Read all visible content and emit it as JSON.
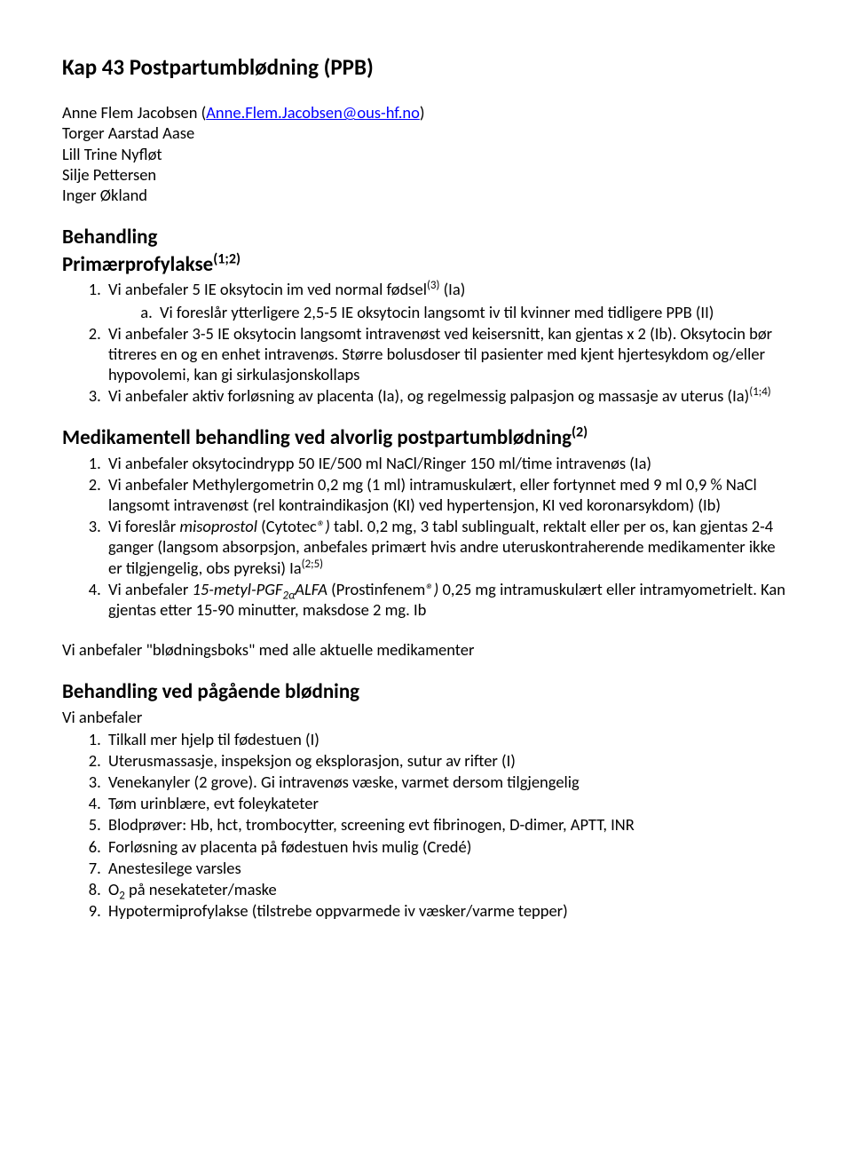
{
  "title": "Kap 43 Postpartumblødning (PPB)",
  "authors": {
    "line1_pre": "Anne Flem Jacobsen (",
    "email": "Anne.Flem.Jacobsen@ous-hf.no",
    "line1_post": ")",
    "line2": "Torger Aarstad Aase",
    "line3": "Lill Trine Nyfløt",
    "line4": "Silje Pettersen",
    "line5": "Inger Økland"
  },
  "s1": {
    "heading": "Behandling",
    "subheading_pre": "Primærprofylakse",
    "subheading_sup": "(1;2)",
    "items": {
      "i1_pre": "Vi anbefaler 5 IE oksytocin im ved normal fødsel",
      "i1_sup": "(3)",
      "i1_post": " (Ia)",
      "i1a": "Vi foreslår ytterligere 2,5-5 IE oksytocin langsomt iv til kvinner med tidligere PPB (II)",
      "i2": "Vi anbefaler 3-5 IE oksytocin langsomt intravenøst ved keisersnitt, kan gjentas x 2 (Ib). Oksytocin bør titreres en og en enhet intravenøs. Større bolusdoser til pasienter med kjent hjertesykdom og/eller hypovolemi, kan gi sirkulasjonskollaps",
      "i3_pre": "Vi anbefaler aktiv forløsning av placenta (Ia), og regelmessig palpasjon og massasje av uterus (Ia)",
      "i3_sup": "(1;4)"
    }
  },
  "s2": {
    "heading_pre": "Medikamentell behandling ved alvorlig postpartumblødning",
    "heading_sup": "(2)",
    "items": {
      "i1": "Vi anbefaler oksytocindrypp 50 IE/500 ml NaCl/Ringer 150 ml/time intravenøs (Ia)",
      "i2": "Vi anbefaler Methylergometrin 0,2 mg (1 ml) intramuskulært, eller fortynnet med 9 ml 0,9 % NaCl langsomt intravenøst (rel kontraindikasjon (KI) ved hypertensjon, KI ved koronarsykdom) (Ib)",
      "i3_pre": "Vi foreslår ",
      "i3_em": "misoprostol",
      "i3_mid": " (Cytotec",
      "i3_em2": "®)",
      "i3_post": " tabl. 0,2 mg, 3 tabl sublingualt, rektalt eller per os, kan gjentas 2-4 ganger (langsom absorpsjon, anbefales primært hvis andre uteruskontraherende medikamenter ikke er tilgjengelig, obs pyreksi) Ia",
      "i3_sup": "(2;5)",
      "i4_pre": "Vi anbefaler ",
      "i4_em_pre": "15-metyl-PGF",
      "i4_em_sub": "2α",
      "i4_em_post": "ALFA",
      "i4_mid": " (Prostinfenem",
      "i4_em2": "®)",
      "i4_post": " 0,25 mg intramuskulært eller intramyometrielt. Kan gjentas etter 15-90 minutter, maksdose 2 mg. Ib"
    }
  },
  "standalone": "Vi anbefaler \"blødningsboks\" med alle aktuelle medikamenter",
  "s3": {
    "heading": "Behandling ved pågående blødning",
    "subheading": "Vi anbefaler",
    "items": {
      "i1": "Tilkall mer hjelp til fødestuen (I)",
      "i2": "Uterusmassasje, inspeksjon og eksplorasjon, sutur av rifter (I)",
      "i3": "Venekanyler (2 grove). Gi intravenøs væske, varmet dersom tilgjengelig",
      "i4": "Tøm urinblære, evt foleykateter",
      "i5": "Blodprøver: Hb, hct, trombocytter, screening  evt fibrinogen, D-dimer, APTT, INR",
      "i6": "Forløsning av placenta på fødestuen hvis mulig (Credé)",
      "i7": "Anestesilege varsles",
      "i8_pre": "O",
      "i8_sub": "2",
      "i8_post": " på nesekateter/maske",
      "i9": "Hypotermiprofylakse (tilstrebe oppvarmede iv væsker/varme tepper)"
    }
  }
}
